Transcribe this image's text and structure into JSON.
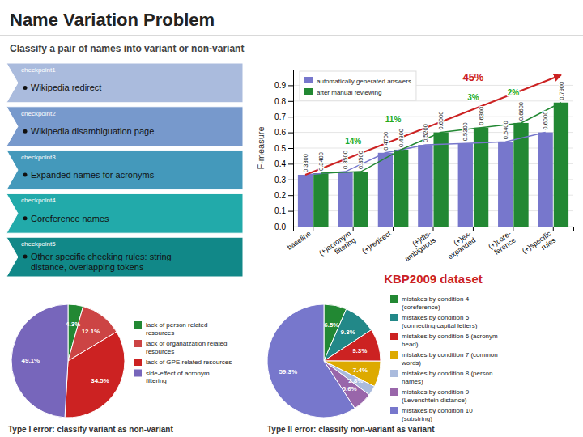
{
  "chart_data": [
    {
      "type": "bar",
      "title": "Name Variation Problem",
      "subtitle": "Classify a pair of names into variant or non-variant",
      "categories": [
        "baseline",
        "(+)acronym\nfiltering",
        "(+)redirect",
        "(+)dis-\nambiguous",
        "(+)ex-\nexpanded",
        "(+)core-\nference",
        "(+)specific\nrules"
      ],
      "series": [
        {
          "name": "automatically generated answers",
          "color": "#7777cc",
          "line_style": "solid",
          "values": [
            0.33,
            0.35,
            0.47,
            0.52,
            0.53,
            0.54,
            0.6
          ],
          "value_labels": [
            "0.3300",
            "0.3500",
            "0.4700",
            "0.5200",
            "0.5300",
            "0.5400",
            "0.6000"
          ]
        },
        {
          "name": "after manual reviewing",
          "color": "#228833",
          "line_style": "solid",
          "values": [
            0.34,
            0.35,
            0.49,
            0.6,
            0.63,
            0.66,
            0.79
          ],
          "value_labels": [
            "0.3400",
            "0.3500",
            "0.4900",
            "0.6000",
            "0.6300",
            "0.6600",
            "0.7900"
          ]
        }
      ],
      "y_label": "F-measure",
      "ylim": [
        0,
        1.0
      ],
      "yticks": [
        {
          "value": 0,
          "label": "0.0"
        },
        0.1,
        0.2,
        0.3,
        0.4,
        0.5,
        0.6,
        0.7,
        0.8,
        0.9
      ],
      "grid": true,
      "legend": "top-left",
      "data_labels": true,
      "annotations": [
        {
          "label": "checkpoint1",
          "text": "Wikipedia redirect",
          "color": "#aabbdd"
        },
        {
          "label": "checkpoint2",
          "text": "Wikipedia disambiguation page",
          "color": "#7799cc"
        },
        {
          "label": "checkpoint3",
          "text": "Expanded names for acronyms",
          "color": "#4499bb"
        },
        {
          "label": "checkpoint4",
          "text": "Coreference names",
          "color": "#22aaaa"
        },
        {
          "label": "checkpoint5",
          "text": "Other specific checking rules: string\ndistance, overlapping tokens",
          "color": "#118888"
        },
        {
          "text": "KBP2009 dataset",
          "color": "#cc2222"
        },
        {
          "text": "45%",
          "color": "#cc2222"
        },
        {
          "text": "14%",
          "color": "#22aa22"
        },
        {
          "text": "11%",
          "color": "#22aa22"
        },
        {
          "text": "3%",
          "color": "#22aa22"
        },
        {
          "text": "2%",
          "color": "#22aa22"
        }
      ]
    },
    {
      "type": "pie",
      "title": "Type I error: classify variant as non-variant",
      "categories": [
        "lack of person related\nresources",
        "lack of organatzation related\nresources",
        "lack of GPE related resources",
        "side-effect of acronym\nfiltering"
      ],
      "values": [
        4.3,
        12.1,
        34.5,
        49.1
      ],
      "value_labels": [
        "4.3%",
        "12.1%",
        "34.5%",
        "49.1%"
      ],
      "colors": [
        "#228833",
        "#cc4444",
        "#cc2222",
        "#7766bb"
      ],
      "data_labels": true,
      "legend": "right"
    },
    {
      "type": "pie",
      "title": "Type II error: classify non-variant as variant",
      "categories": [
        "mistakes by condition 4\n(coreference)",
        "mistakes by condition 5\n(connecting capital letters)",
        "mistakes by condition 6 (acronym\nhead)",
        "mistakes by condition 7 (common\nwords)",
        "mistakes by condition 8 (person\nnames)",
        "mistakes by condition 9\n(Levenshtein distance)",
        "mistakes by condition 10\n(substring)"
      ],
      "values": [
        6.5,
        9.3,
        9.3,
        7.4,
        2.8,
        5.6,
        59.3
      ],
      "value_labels": [
        "6.5%",
        "9.3%",
        "9.3%",
        "7.4%",
        "2.8%",
        "5.6%",
        "59.3%"
      ],
      "colors": [
        "#228833",
        "#228888",
        "#cc2222",
        "#ddaa00",
        "#aabbdd",
        "#9966aa",
        "#7777cc"
      ],
      "data_labels": true,
      "legend": "right"
    }
  ]
}
